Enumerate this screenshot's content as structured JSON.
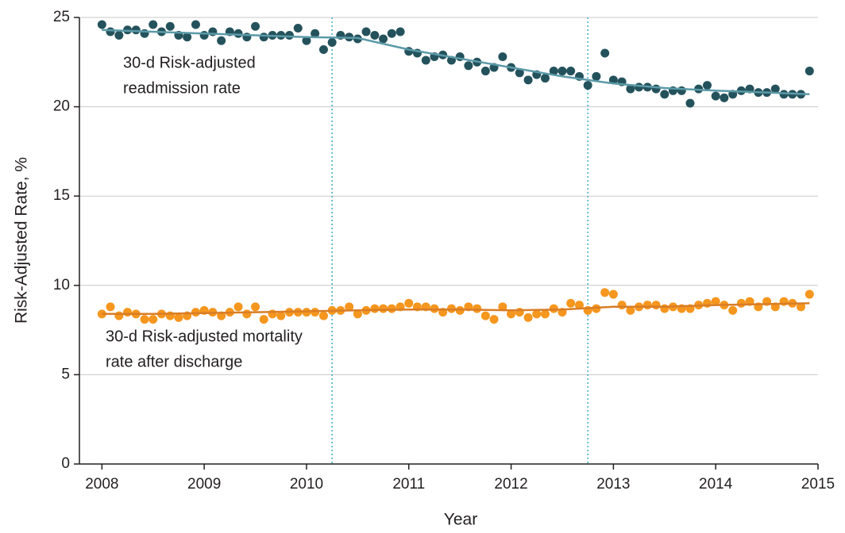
{
  "chart_data": {
    "type": "scatter",
    "xlabel": "Year",
    "ylabel": "Risk-Adjusted Rate, %",
    "xlim": [
      2007.78,
      2015
    ],
    "ylim": [
      0,
      25
    ],
    "xticks": [
      2008,
      2009,
      2010,
      2011,
      2012,
      2013,
      2014,
      2015
    ],
    "yticks": [
      0,
      5,
      10,
      15,
      20,
      25
    ],
    "grid": true,
    "vlines": [
      2010.25,
      2012.75
    ],
    "vline_color": "#3aaec6",
    "x": [
      2008,
      2008.083,
      2008.167,
      2008.25,
      2008.333,
      2008.417,
      2008.5,
      2008.583,
      2008.667,
      2008.75,
      2008.833,
      2008.917,
      2009,
      2009.083,
      2009.167,
      2009.25,
      2009.333,
      2009.417,
      2009.5,
      2009.583,
      2009.667,
      2009.75,
      2009.833,
      2009.917,
      2010,
      2010.083,
      2010.167,
      2010.25,
      2010.333,
      2010.417,
      2010.5,
      2010.583,
      2010.667,
      2010.75,
      2010.833,
      2010.917,
      2011,
      2011.083,
      2011.167,
      2011.25,
      2011.333,
      2011.417,
      2011.5,
      2011.583,
      2011.667,
      2011.75,
      2011.833,
      2011.917,
      2012,
      2012.083,
      2012.167,
      2012.25,
      2012.333,
      2012.417,
      2012.5,
      2012.583,
      2012.667,
      2012.75,
      2012.833,
      2012.917,
      2013,
      2013.083,
      2013.167,
      2013.25,
      2013.333,
      2013.417,
      2013.5,
      2013.583,
      2013.667,
      2013.75,
      2013.833,
      2013.917,
      2014,
      2014.083,
      2014.167,
      2014.25,
      2014.333,
      2014.417,
      2014.5,
      2014.583,
      2014.667,
      2014.75,
      2014.833,
      2014.917
    ],
    "series": [
      {
        "label_lines": [
          "30-d Risk-adjusted",
          "readmission rate"
        ],
        "color": "#24525c",
        "trend_color": "#5b9aa8",
        "values": [
          24.6,
          24.2,
          24.0,
          24.3,
          24.3,
          24.1,
          24.6,
          24.2,
          24.5,
          24.0,
          23.9,
          24.6,
          24.0,
          24.2,
          23.7,
          24.2,
          24.1,
          23.9,
          24.5,
          23.9,
          24.0,
          24.0,
          24.0,
          24.4,
          23.7,
          24.1,
          23.2,
          23.6,
          24.0,
          23.9,
          23.8,
          24.2,
          24.0,
          23.8,
          24.1,
          24.2,
          23.1,
          23.0,
          22.6,
          22.8,
          22.9,
          22.6,
          22.8,
          22.3,
          22.5,
          22.0,
          22.2,
          22.8,
          22.2,
          21.9,
          21.5,
          21.8,
          21.6,
          22.0,
          22.0,
          22.0,
          21.7,
          21.2,
          21.7,
          23.0,
          21.5,
          21.4,
          21.0,
          21.1,
          21.1,
          21.0,
          20.7,
          20.9,
          20.9,
          20.2,
          21.0,
          21.2,
          20.6,
          20.5,
          20.7,
          20.9,
          21.0,
          20.8,
          20.8,
          21.0,
          20.7,
          20.7,
          20.7,
          22.0
        ],
        "trend": {
          "x": [
            2008,
            2008.5,
            2009,
            2009.5,
            2010,
            2010.5,
            2011,
            2011.5,
            2012,
            2012.5,
            2013,
            2013.5,
            2014,
            2014.5,
            2014.917
          ],
          "values": [
            24.3,
            24.2,
            24.1,
            24.0,
            23.9,
            23.85,
            23.2,
            22.7,
            22.2,
            21.7,
            21.3,
            21.05,
            20.9,
            20.8,
            20.7
          ]
        }
      },
      {
        "label_lines": [
          "30-d Risk-adjusted mortality",
          "rate after discharge"
        ],
        "color": "#f5961e",
        "trend_color": "#d97d26",
        "values": [
          8.4,
          8.8,
          8.3,
          8.5,
          8.4,
          8.1,
          8.1,
          8.4,
          8.3,
          8.2,
          8.3,
          8.5,
          8.6,
          8.5,
          8.3,
          8.5,
          8.8,
          8.4,
          8.8,
          8.1,
          8.4,
          8.3,
          8.5,
          8.5,
          8.5,
          8.5,
          8.3,
          8.6,
          8.6,
          8.8,
          8.4,
          8.6,
          8.7,
          8.7,
          8.7,
          8.8,
          9.0,
          8.8,
          8.8,
          8.7,
          8.5,
          8.7,
          8.6,
          8.8,
          8.7,
          8.3,
          8.1,
          8.8,
          8.4,
          8.5,
          8.2,
          8.4,
          8.4,
          8.7,
          8.5,
          9.0,
          8.9,
          8.6,
          8.7,
          9.6,
          9.5,
          8.9,
          8.6,
          8.8,
          8.9,
          8.9,
          8.7,
          8.8,
          8.7,
          8.7,
          8.9,
          9.0,
          9.1,
          8.9,
          8.6,
          9.0,
          9.1,
          8.8,
          9.1,
          8.8,
          9.1,
          9.0,
          8.8,
          9.5
        ],
        "trend": {
          "x": [
            2008,
            2008.5,
            2009,
            2009.5,
            2010,
            2010.5,
            2011,
            2011.5,
            2012,
            2012.5,
            2013,
            2013.5,
            2014,
            2014.5,
            2014.917
          ],
          "values": [
            8.4,
            8.4,
            8.45,
            8.5,
            8.55,
            8.6,
            8.65,
            8.65,
            8.6,
            8.65,
            8.8,
            8.8,
            8.9,
            8.95,
            9.0
          ]
        }
      }
    ]
  }
}
